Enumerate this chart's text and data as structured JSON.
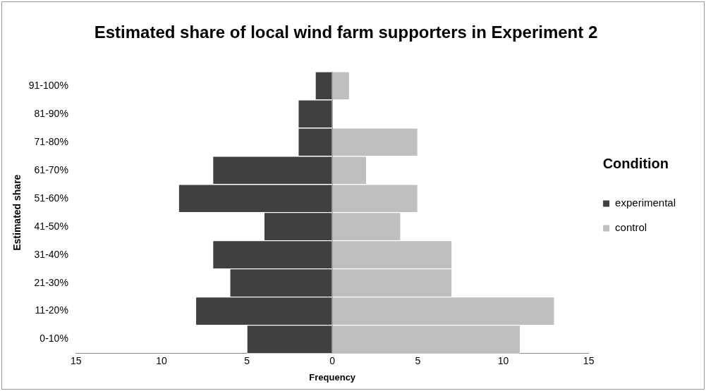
{
  "chart_data": {
    "type": "bar",
    "orientation": "horizontal",
    "stacked": true,
    "title": "Estimated share of local wind farm supporters in Experiment 2",
    "xlabel": "Frequency",
    "ylabel": "Estimated share",
    "legend_title": "Condition",
    "legend": "right",
    "grid": false,
    "categories": [
      "91-100%",
      "81-90%",
      "71-80%",
      "61-70%",
      "51-60%",
      "41-50%",
      "31-40%",
      "21-30%",
      "11-20%",
      "0-10%"
    ],
    "series": [
      {
        "name": "experimental",
        "color": "#404040",
        "values": [
          -1,
          -2,
          -2,
          -7,
          -9,
          -4,
          -7,
          -6,
          -8,
          -5
        ]
      },
      {
        "name": "control",
        "color": "#bfbfbf",
        "values": [
          1,
          0,
          5,
          2,
          5,
          4,
          7,
          7,
          13,
          11
        ]
      }
    ],
    "ref_lines": [
      {
        "axis": "x",
        "value": 0,
        "color": "#888888"
      }
    ],
    "xlim": [
      -15,
      15
    ],
    "xticks": [
      {
        "value": -15,
        "label": "15"
      },
      {
        "value": -10,
        "label": "10"
      },
      {
        "value": -5,
        "label": "5"
      },
      0,
      5,
      10,
      15
    ]
  }
}
